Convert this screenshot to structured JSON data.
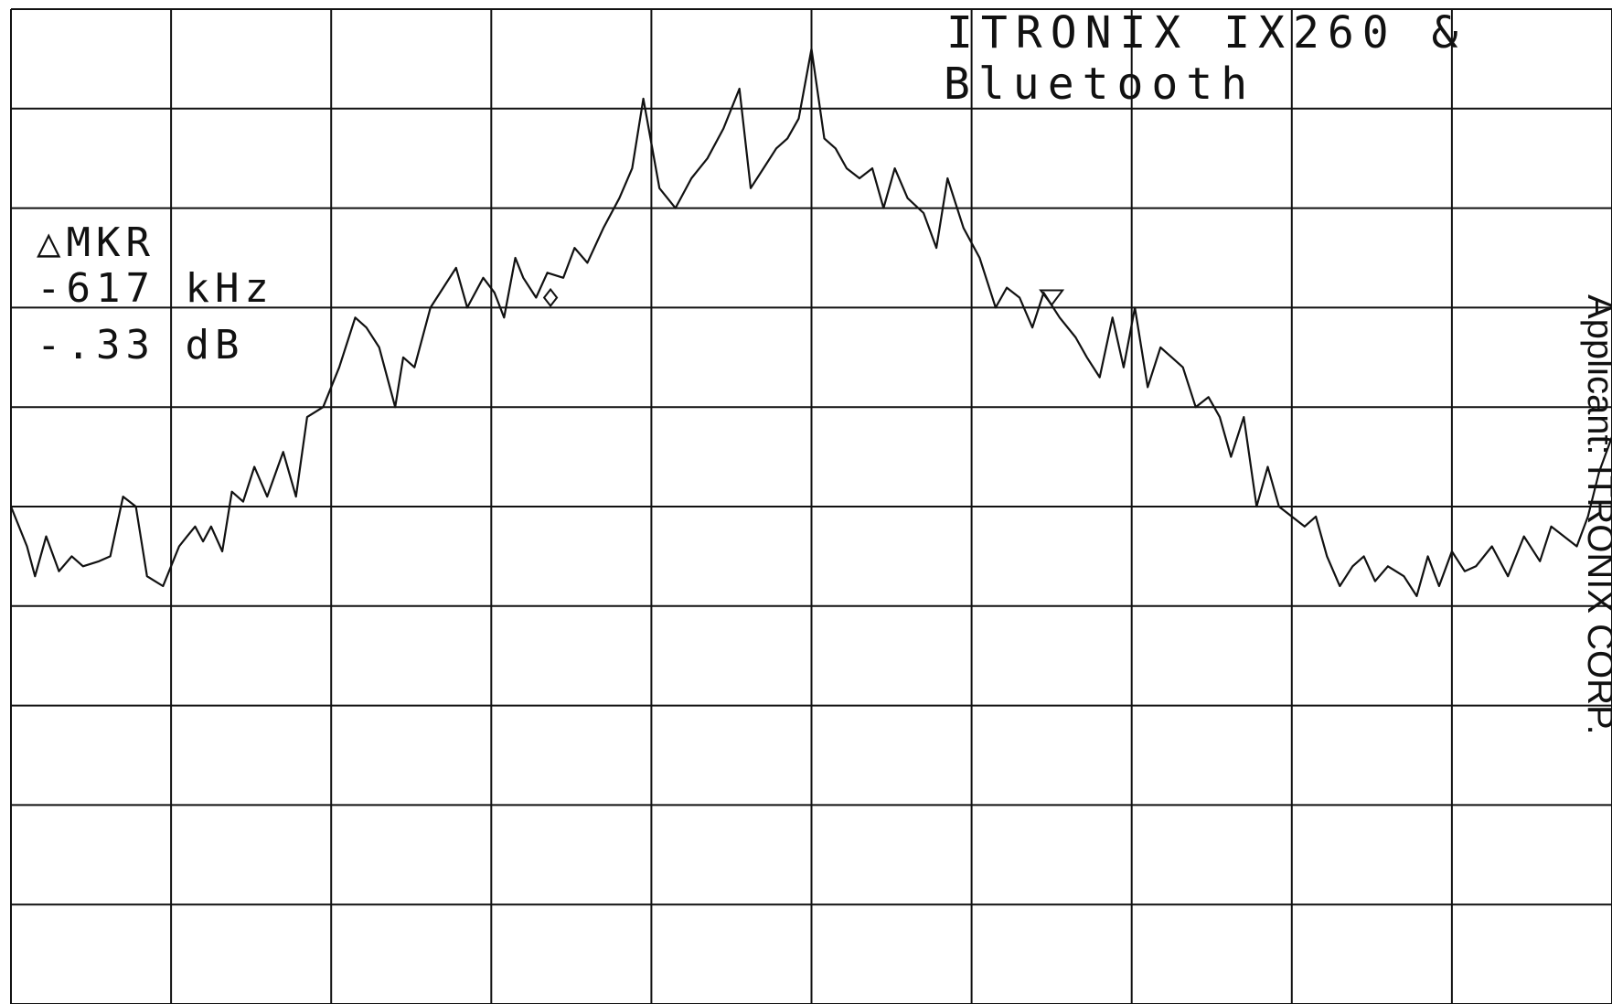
{
  "chart_data": {
    "type": "line",
    "title_lines": [
      "ITRONIX IX260 &",
      "Bluetooth"
    ],
    "marker_readout": {
      "label": "△MKR",
      "frequency": "-617 kHz",
      "level": "-.33 dB"
    },
    "side_label": "Applicant: ITRONIX CORP.",
    "grid": true,
    "grid_divisions": {
      "x": 10,
      "y": 10
    },
    "x_range": [
      0,
      10
    ],
    "y_range": [
      0,
      10
    ],
    "series": [
      {
        "x": [
          0,
          0.1,
          0.15,
          0.22,
          0.3,
          0.38,
          0.45,
          0.55,
          0.62,
          0.7,
          0.78,
          0.85,
          0.95,
          1.05,
          1.1,
          1.15,
          1.2,
          1.25,
          1.32,
          1.38,
          1.45,
          1.52,
          1.6,
          1.7,
          1.78,
          1.85,
          1.95,
          2.05,
          2.15,
          2.22,
          2.3,
          2.4,
          2.45,
          2.52,
          2.62,
          2.7,
          2.78,
          2.85,
          2.95,
          3.02,
          3.08,
          3.15,
          3.2,
          3.28,
          3.35,
          3.45,
          3.52,
          3.6,
          3.7,
          3.8,
          3.88,
          3.95,
          4.05,
          4.15,
          4.25,
          4.35,
          4.45,
          4.55,
          4.62,
          4.7,
          4.78,
          4.85,
          4.92,
          5.0,
          5.08,
          5.15,
          5.22,
          5.3,
          5.38,
          5.45,
          5.52,
          5.6,
          5.7,
          5.78,
          5.85,
          5.95,
          6.05,
          6.15,
          6.22,
          6.3,
          6.38,
          6.45,
          6.55,
          6.65,
          6.72,
          6.8,
          6.88,
          6.95,
          7.02,
          7.1,
          7.18,
          7.25,
          7.32,
          7.4,
          7.48,
          7.55,
          7.62,
          7.7,
          7.78,
          7.85,
          7.92,
          8.0,
          8.08,
          8.15,
          8.22,
          8.3,
          8.38,
          8.45,
          8.52,
          8.6,
          8.7,
          8.78,
          8.85,
          8.92,
          9.0,
          9.08,
          9.15,
          9.25,
          9.35,
          9.45,
          9.55,
          9.62,
          9.7,
          9.78,
          9.85,
          9.92,
          10.0
        ],
        "y": [
          5.0,
          4.6,
          4.3,
          4.7,
          4.35,
          4.5,
          4.4,
          4.45,
          4.5,
          5.1,
          5.0,
          4.3,
          4.2,
          4.6,
          4.7,
          4.8,
          4.65,
          4.8,
          4.55,
          5.15,
          5.05,
          5.4,
          5.1,
          5.55,
          5.1,
          5.9,
          6.0,
          6.4,
          6.9,
          6.8,
          6.6,
          6.0,
          6.5,
          6.4,
          7.0,
          7.2,
          7.4,
          7.0,
          7.3,
          7.15,
          6.9,
          7.5,
          7.3,
          7.1,
          7.35,
          7.3,
          7.6,
          7.45,
          7.8,
          8.1,
          8.4,
          9.1,
          8.2,
          8.0,
          8.3,
          8.5,
          8.8,
          9.2,
          8.2,
          8.4,
          8.6,
          8.7,
          8.9,
          9.6,
          8.7,
          8.6,
          8.4,
          8.3,
          8.4,
          8.0,
          8.4,
          8.1,
          7.95,
          7.6,
          8.3,
          7.8,
          7.5,
          7.0,
          7.2,
          7.1,
          6.8,
          7.15,
          6.9,
          6.7,
          6.5,
          6.3,
          6.9,
          6.4,
          7.0,
          6.2,
          6.6,
          6.5,
          6.4,
          6.0,
          6.1,
          5.9,
          5.5,
          5.9,
          5.0,
          5.4,
          5.0,
          4.9,
          4.8,
          4.9,
          4.5,
          4.2,
          4.4,
          4.5,
          4.25,
          4.4,
          4.3,
          4.1,
          4.5,
          4.2,
          4.55,
          4.35,
          4.4,
          4.6,
          4.3,
          4.7,
          4.45,
          4.8,
          4.7,
          4.6,
          4.9,
          5.35,
          5.7
        ]
      }
    ],
    "markers": [
      {
        "type": "diamond",
        "x": 3.37,
        "y": 7.1
      },
      {
        "type": "triangle",
        "x": 6.5,
        "y": 7.1
      }
    ]
  }
}
